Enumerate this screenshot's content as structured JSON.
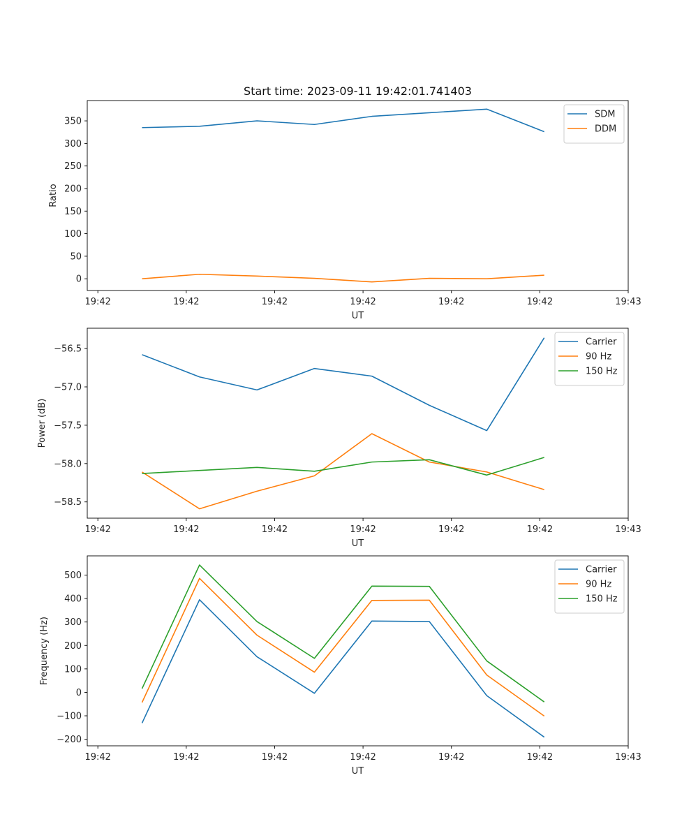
{
  "title": "Start time: 2023-09-11 19:42:01.741403",
  "colors": {
    "series1": "#1f77b4",
    "series2": "#ff7f0e",
    "series3": "#2ca02c"
  },
  "chart_data": [
    {
      "type": "line",
      "title": "Start time: 2023-09-11 19:42:01.741403",
      "xlabel": "UT",
      "ylabel": "Ratio",
      "x_ticks": [
        "19:42",
        "19:42",
        "19:42",
        "19:42",
        "19:42",
        "19:42",
        "19:43"
      ],
      "x_tick_values": [
        0,
        1,
        2,
        3,
        4,
        5,
        6
      ],
      "xlim": [
        -0.12,
        6.0
      ],
      "x": [
        0.5,
        1.15,
        1.8,
        2.45,
        3.1,
        3.75,
        4.4,
        5.05
      ],
      "ylim": [
        -26,
        395
      ],
      "y_ticks": [
        0,
        50,
        100,
        150,
        200,
        250,
        300,
        350
      ],
      "y_tick_labels": [
        "0",
        "50",
        "100",
        "150",
        "200",
        "250",
        "300",
        "350"
      ],
      "legend_loc": "upper right",
      "series": [
        {
          "name": "SDM",
          "color": "#1f77b4",
          "values": [
            335,
            338,
            350,
            342,
            360,
            368,
            376,
            326
          ]
        },
        {
          "name": "DDM",
          "color": "#ff7f0e",
          "values": [
            0,
            10,
            6,
            1,
            -7,
            1,
            0,
            8
          ]
        }
      ]
    },
    {
      "type": "line",
      "title": "",
      "xlabel": "UT",
      "ylabel": "Power (dB)",
      "x_ticks": [
        "19:42",
        "19:42",
        "19:42",
        "19:42",
        "19:42",
        "19:42",
        "19:43"
      ],
      "x_tick_values": [
        0,
        1,
        2,
        3,
        4,
        5,
        6
      ],
      "xlim": [
        -0.12,
        6.0
      ],
      "x": [
        0.5,
        1.15,
        1.8,
        2.45,
        3.1,
        3.75,
        4.4,
        5.05
      ],
      "ylim": [
        -58.712,
        -56.235
      ],
      "y_ticks": [
        -56.5,
        -57.0,
        -57.5,
        -58.0,
        -58.5
      ],
      "y_tick_labels": [
        "−56.5",
        "−57.0",
        "−57.5",
        "−58.0",
        "−58.5"
      ],
      "legend_loc": "upper right",
      "series": [
        {
          "name": "Carrier",
          "color": "#1f77b4",
          "values": [
            -56.58,
            -56.87,
            -57.04,
            -56.76,
            -56.86,
            -57.24,
            -57.57,
            -56.36
          ]
        },
        {
          "name": "90 Hz",
          "color": "#ff7f0e",
          "values": [
            -58.11,
            -58.59,
            -58.36,
            -58.16,
            -57.61,
            -57.98,
            -58.11,
            -58.34
          ]
        },
        {
          "name": "150 Hz",
          "color": "#2ca02c",
          "values": [
            -58.13,
            -58.09,
            -58.05,
            -58.1,
            -57.98,
            -57.95,
            -58.15,
            -57.92
          ]
        }
      ]
    },
    {
      "type": "line",
      "title": "",
      "xlabel": "UT",
      "ylabel": "Frequency (Hz)",
      "x_ticks": [
        "19:42",
        "19:42",
        "19:42",
        "19:42",
        "19:42",
        "19:42",
        "19:43"
      ],
      "x_tick_values": [
        0,
        1,
        2,
        3,
        4,
        5,
        6
      ],
      "xlim": [
        -0.12,
        6.0
      ],
      "x": [
        0.5,
        1.15,
        1.8,
        2.45,
        3.1,
        3.75,
        4.4,
        5.05
      ],
      "ylim": [
        -228,
        582
      ],
      "y_ticks": [
        -200,
        -100,
        0,
        100,
        200,
        300,
        400,
        500
      ],
      "y_tick_labels": [
        "−200",
        "−100",
        "0",
        "100",
        "200",
        "300",
        "400",
        "500"
      ],
      "legend_loc": "upper right",
      "series": [
        {
          "name": "Carrier",
          "color": "#1f77b4",
          "values": [
            -131,
            395,
            152,
            -4,
            304,
            302,
            -14,
            -191
          ]
        },
        {
          "name": "90 Hz",
          "color": "#ff7f0e",
          "values": [
            -43,
            486,
            244,
            86,
            392,
            393,
            74,
            -101
          ]
        },
        {
          "name": "150 Hz",
          "color": "#2ca02c",
          "values": [
            16,
            543,
            302,
            145,
            453,
            452,
            134,
            -41
          ]
        }
      ]
    }
  ]
}
